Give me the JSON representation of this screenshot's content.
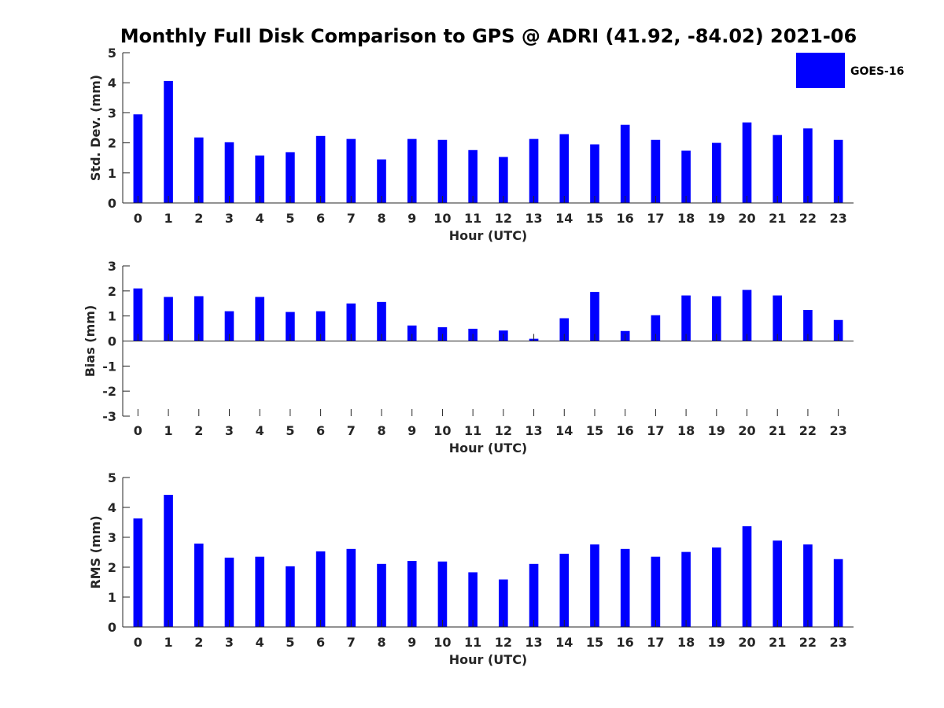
{
  "figure": {
    "title": "Monthly Full Disk Comparison to GPS @ ADRI (41.92, -84.02) 2021-06",
    "legend": {
      "label": "GOES-16",
      "color": "#0000ff",
      "position": "top-right"
    }
  },
  "chart_data": [
    {
      "type": "bar",
      "title": "Monthly Full Disk Comparison to GPS @ ADRI (41.92, -84.02) 2021-06",
      "xlabel": "Hour (UTC)",
      "ylabel": "Std. Dev. (mm)",
      "ylim": [
        0,
        5
      ],
      "yticks": [
        0,
        1,
        2,
        3,
        4,
        5
      ],
      "categories": [
        "0",
        "1",
        "2",
        "3",
        "4",
        "5",
        "6",
        "7",
        "8",
        "9",
        "10",
        "11",
        "12",
        "13",
        "14",
        "15",
        "16",
        "17",
        "18",
        "19",
        "20",
        "21",
        "22",
        "23"
      ],
      "series": [
        {
          "name": "GOES-16",
          "color": "#0000ff",
          "values": [
            2.95,
            4.06,
            2.18,
            2.02,
            1.58,
            1.69,
            2.23,
            2.13,
            1.45,
            2.13,
            2.1,
            1.76,
            1.53,
            2.13,
            2.29,
            1.95,
            2.6,
            2.1,
            1.74,
            2.0,
            2.68,
            2.26,
            2.48,
            2.1
          ]
        }
      ],
      "grid": false,
      "legend": "top-right"
    },
    {
      "type": "bar",
      "xlabel": "Hour (UTC)",
      "ylabel": "Bias (mm)",
      "ylim": [
        -3,
        3
      ],
      "yticks": [
        -3,
        -2,
        -1,
        0,
        1,
        2,
        3
      ],
      "categories": [
        "0",
        "1",
        "2",
        "3",
        "4",
        "5",
        "6",
        "7",
        "8",
        "9",
        "10",
        "11",
        "12",
        "13",
        "14",
        "15",
        "16",
        "17",
        "18",
        "19",
        "20",
        "21",
        "22",
        "23"
      ],
      "series": [
        {
          "name": "GOES-16",
          "color": "#0000ff",
          "values": [
            2.1,
            1.76,
            1.79,
            1.19,
            1.76,
            1.16,
            1.19,
            1.5,
            1.56,
            0.62,
            0.55,
            0.49,
            0.42,
            0.09,
            0.91,
            1.96,
            0.4,
            1.03,
            1.82,
            1.79,
            2.04,
            1.82,
            1.24,
            0.84
          ]
        }
      ],
      "grid": false
    },
    {
      "type": "bar",
      "xlabel": "Hour (UTC)",
      "ylabel": "RMS (mm)",
      "ylim": [
        0,
        5
      ],
      "yticks": [
        0,
        1,
        2,
        3,
        4,
        5
      ],
      "categories": [
        "0",
        "1",
        "2",
        "3",
        "4",
        "5",
        "6",
        "7",
        "8",
        "9",
        "10",
        "11",
        "12",
        "13",
        "14",
        "15",
        "16",
        "17",
        "18",
        "19",
        "20",
        "21",
        "22",
        "23"
      ],
      "series": [
        {
          "name": "GOES-16",
          "color": "#0000ff",
          "values": [
            3.63,
            4.42,
            2.79,
            2.32,
            2.35,
            2.03,
            2.53,
            2.61,
            2.11,
            2.21,
            2.19,
            1.83,
            1.59,
            2.11,
            2.45,
            2.76,
            2.61,
            2.35,
            2.51,
            2.66,
            3.37,
            2.89,
            2.76,
            2.27
          ]
        }
      ],
      "grid": false
    }
  ]
}
